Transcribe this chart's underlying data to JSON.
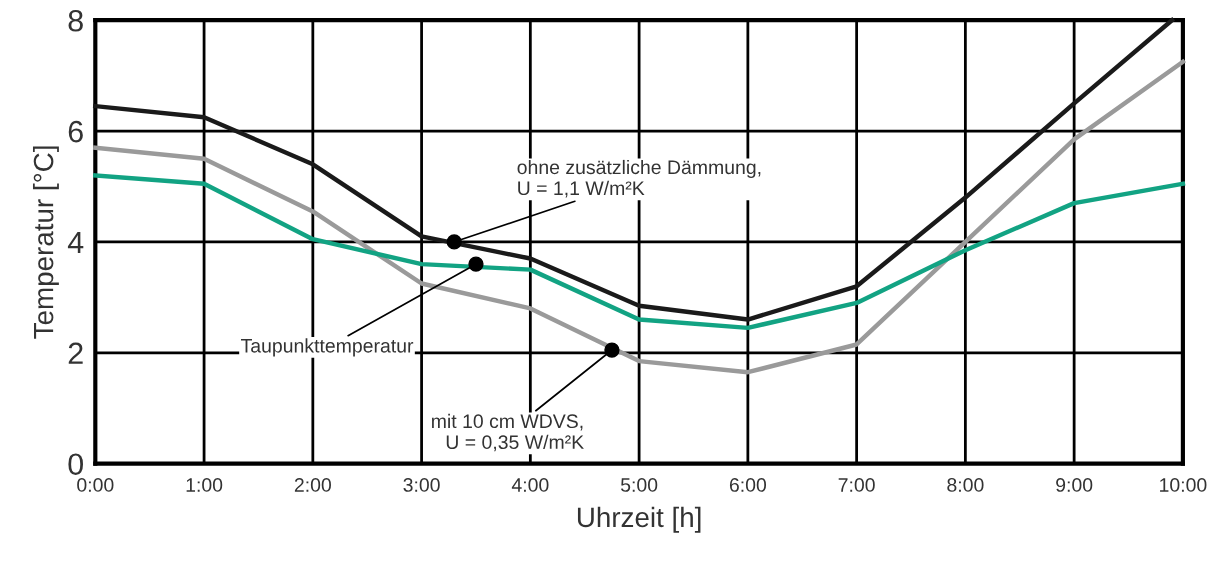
{
  "chart_data": {
    "type": "line",
    "xlabel": "Uhrzeit [h]",
    "ylabel": "Temperatur [°C]",
    "xlim": [
      0,
      10
    ],
    "ylim": [
      0,
      8
    ],
    "xticks": [
      {
        "value": 0,
        "label": "0:00"
      },
      {
        "value": 1,
        "label": "1:00"
      },
      {
        "value": 2,
        "label": "2:00"
      },
      {
        "value": 3,
        "label": "3:00"
      },
      {
        "value": 4,
        "label": "4:00"
      },
      {
        "value": 5,
        "label": "5:00"
      },
      {
        "value": 6,
        "label": "6:00"
      },
      {
        "value": 7,
        "label": "7:00"
      },
      {
        "value": 8,
        "label": "8:00"
      },
      {
        "value": 9,
        "label": "9:00"
      },
      {
        "value": 10,
        "label": "10:00"
      }
    ],
    "yticks": [
      0,
      2,
      4,
      6,
      8
    ],
    "grid": true,
    "marker": "none",
    "line_style": "solid",
    "series": [
      {
        "color": "#1a1a1a",
        "x": [
          0,
          1,
          2,
          3,
          4,
          5,
          6,
          7,
          8,
          9,
          9.9
        ],
        "values": [
          6.45,
          6.25,
          5.4,
          4.1,
          3.7,
          2.85,
          2.6,
          3.2,
          4.8,
          6.5,
          8.0
        ]
      },
      {
        "color": "#9a9a9a",
        "x": [
          0,
          1,
          2,
          3,
          4,
          5,
          6,
          7,
          8,
          9,
          10
        ],
        "values": [
          5.7,
          5.5,
          4.55,
          3.25,
          2.8,
          1.85,
          1.65,
          2.15,
          4.0,
          5.85,
          7.25
        ]
      },
      {
        "color": "#12a383",
        "x": [
          0,
          1,
          2,
          3,
          4,
          5,
          6,
          7,
          8,
          9,
          10
        ],
        "values": [
          5.2,
          5.05,
          4.05,
          3.6,
          3.5,
          2.6,
          2.45,
          2.9,
          3.85,
          4.7,
          5.05
        ]
      }
    ],
    "annotations": [
      {
        "text": "ohne zusätzliche Dämmung,\nU = 1,1 W/m²K",
        "x": 3.3,
        "y": 4.0
      },
      {
        "text": "Taupunkttemperatur",
        "x": 3.5,
        "y": 3.6
      },
      {
        "text": "mit 10 cm WDVS,\nU = 0,35 W/m²K",
        "x": 4.75,
        "y": 2.05
      }
    ]
  }
}
